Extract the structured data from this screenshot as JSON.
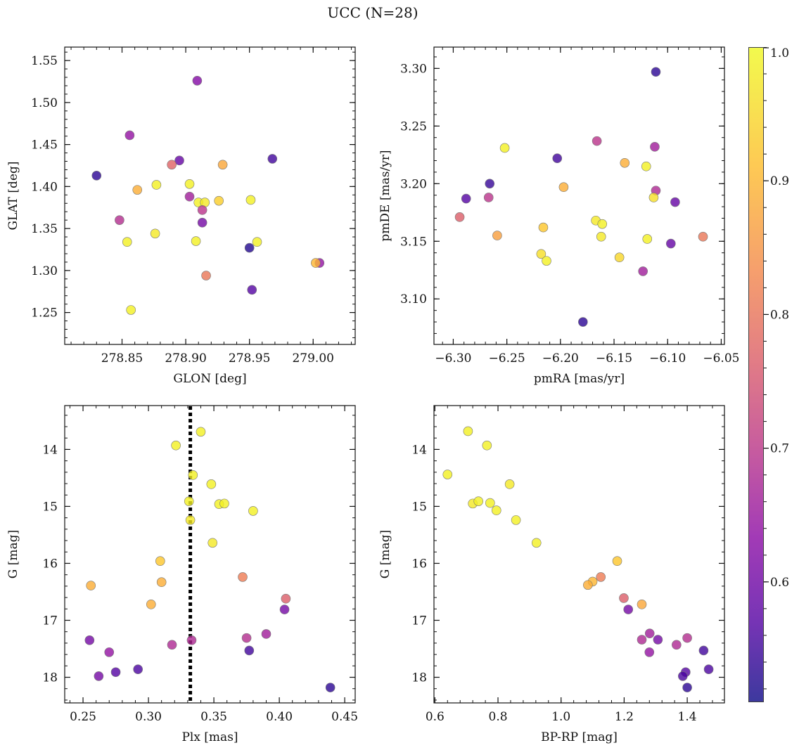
{
  "title": "UCC (N=28)",
  "colormap": "plasma",
  "colorbar": {
    "vmin": 0.51,
    "vmax": 1.0,
    "ticks": [
      0.6,
      0.7,
      0.8,
      0.9,
      1.0
    ],
    "tick_labels": [
      "0.6",
      "0.7",
      "0.8",
      "0.9",
      "1.0"
    ]
  },
  "chart_data": [
    {
      "type": "scatter",
      "title": "",
      "xlabel": "GLON [deg]",
      "ylabel": "GLAT [deg]",
      "xlim": [
        278.805,
        279.033
      ],
      "ylim": [
        1.212,
        1.566
      ],
      "y_inverted": false,
      "xticks": [
        278.85,
        278.9,
        278.95,
        279.0
      ],
      "xtick_labels": [
        "278.85",
        "278.90",
        "278.95",
        "279.00"
      ],
      "yticks": [
        1.25,
        1.3,
        1.35,
        1.4,
        1.45,
        1.5,
        1.55
      ],
      "ytick_labels": [
        "1.25",
        "1.30",
        "1.35",
        "1.40",
        "1.45",
        "1.50",
        "1.55"
      ],
      "points": [
        {
          "x": 278.83,
          "y": 1.413,
          "c": 0.54
        },
        {
          "x": 278.856,
          "y": 1.461,
          "c": 0.66
        },
        {
          "x": 278.909,
          "y": 1.526,
          "c": 0.64
        },
        {
          "x": 278.895,
          "y": 1.431,
          "c": 0.6
        },
        {
          "x": 278.889,
          "y": 1.426,
          "c": 0.8
        },
        {
          "x": 278.968,
          "y": 1.433,
          "c": 0.56
        },
        {
          "x": 278.929,
          "y": 1.426,
          "c": 0.9
        },
        {
          "x": 278.862,
          "y": 1.396,
          "c": 0.91
        },
        {
          "x": 278.877,
          "y": 1.402,
          "c": 0.99
        },
        {
          "x": 278.903,
          "y": 1.403,
          "c": 0.99
        },
        {
          "x": 278.903,
          "y": 1.388,
          "c": 0.68
        },
        {
          "x": 278.91,
          "y": 1.381,
          "c": 0.99
        },
        {
          "x": 278.915,
          "y": 1.381,
          "c": 0.98
        },
        {
          "x": 278.926,
          "y": 1.383,
          "c": 0.95
        },
        {
          "x": 278.951,
          "y": 1.384,
          "c": 0.99
        },
        {
          "x": 278.913,
          "y": 1.372,
          "c": 0.72
        },
        {
          "x": 278.913,
          "y": 1.357,
          "c": 0.62
        },
        {
          "x": 278.848,
          "y": 1.36,
          "c": 0.71
        },
        {
          "x": 278.876,
          "y": 1.344,
          "c": 0.98
        },
        {
          "x": 278.854,
          "y": 1.334,
          "c": 0.99
        },
        {
          "x": 278.908,
          "y": 1.335,
          "c": 0.99
        },
        {
          "x": 278.956,
          "y": 1.334,
          "c": 0.99
        },
        {
          "x": 278.95,
          "y": 1.327,
          "c": 0.53
        },
        {
          "x": 279.005,
          "y": 1.309,
          "c": 0.66
        },
        {
          "x": 279.002,
          "y": 1.309,
          "c": 0.92
        },
        {
          "x": 278.916,
          "y": 1.294,
          "c": 0.83
        },
        {
          "x": 278.952,
          "y": 1.277,
          "c": 0.58
        },
        {
          "x": 278.857,
          "y": 1.253,
          "c": 0.99
        }
      ]
    },
    {
      "type": "scatter",
      "title": "",
      "xlabel": "pmRA [mas/yr]",
      "ylabel": "pmDE [mas/yr]",
      "xlim": [
        -6.318,
        -6.047
      ],
      "ylim": [
        3.0605,
        3.3185
      ],
      "y_inverted": false,
      "xticks": [
        -6.3,
        -6.25,
        -6.2,
        -6.15,
        -6.1,
        -6.05
      ],
      "xtick_labels": [
        "−6.30",
        "−6.25",
        "−6.20",
        "−6.15",
        "−6.10",
        "−6.05"
      ],
      "yticks": [
        3.1,
        3.15,
        3.2,
        3.25,
        3.3
      ],
      "ytick_labels": [
        "3.10",
        "3.15",
        "3.20",
        "3.25",
        "3.30"
      ],
      "points": [
        {
          "x": -6.111,
          "y": 3.297,
          "c": 0.54
        },
        {
          "x": -6.166,
          "y": 3.237,
          "c": 0.72
        },
        {
          "x": -6.252,
          "y": 3.231,
          "c": 0.99
        },
        {
          "x": -6.112,
          "y": 3.232,
          "c": 0.68
        },
        {
          "x": -6.203,
          "y": 3.222,
          "c": 0.56
        },
        {
          "x": -6.14,
          "y": 3.218,
          "c": 0.91
        },
        {
          "x": -6.12,
          "y": 3.215,
          "c": 0.99
        },
        {
          "x": -6.266,
          "y": 3.2,
          "c": 0.55
        },
        {
          "x": -6.197,
          "y": 3.197,
          "c": 0.91
        },
        {
          "x": -6.111,
          "y": 3.194,
          "c": 0.7
        },
        {
          "x": -6.288,
          "y": 3.187,
          "c": 0.58
        },
        {
          "x": -6.267,
          "y": 3.188,
          "c": 0.72
        },
        {
          "x": -6.113,
          "y": 3.188,
          "c": 0.97
        },
        {
          "x": -6.093,
          "y": 3.184,
          "c": 0.6
        },
        {
          "x": -6.294,
          "y": 3.171,
          "c": 0.79
        },
        {
          "x": -6.167,
          "y": 3.168,
          "c": 0.98
        },
        {
          "x": -6.161,
          "y": 3.165,
          "c": 0.99
        },
        {
          "x": -6.216,
          "y": 3.162,
          "c": 0.94
        },
        {
          "x": -6.259,
          "y": 3.155,
          "c": 0.89
        },
        {
          "x": -6.162,
          "y": 3.154,
          "c": 0.98
        },
        {
          "x": -6.067,
          "y": 3.154,
          "c": 0.83
        },
        {
          "x": -6.119,
          "y": 3.152,
          "c": 0.99
        },
        {
          "x": -6.097,
          "y": 3.148,
          "c": 0.6
        },
        {
          "x": -6.218,
          "y": 3.139,
          "c": 0.97
        },
        {
          "x": -6.145,
          "y": 3.136,
          "c": 0.96
        },
        {
          "x": -6.213,
          "y": 3.133,
          "c": 0.99
        },
        {
          "x": -6.123,
          "y": 3.124,
          "c": 0.68
        },
        {
          "x": -6.179,
          "y": 3.08,
          "c": 0.54
        }
      ]
    },
    {
      "type": "scatter",
      "title": "",
      "xlabel": "Plx [mas]",
      "ylabel": "G [mag]",
      "xlim": [
        0.236,
        0.458
      ],
      "ylim": [
        13.23,
        18.45
      ],
      "y_inverted": true,
      "vline": {
        "x": 0.332,
        "style": "dotted"
      },
      "xticks": [
        0.25,
        0.3,
        0.35,
        0.4,
        0.45
      ],
      "xtick_labels": [
        "0.25",
        "0.30",
        "0.35",
        "0.40",
        "0.45"
      ],
      "yticks": [
        14,
        15,
        16,
        17,
        18
      ],
      "ytick_labels": [
        "14",
        "15",
        "16",
        "17",
        "18"
      ],
      "points": [
        {
          "x": 0.34,
          "y": 13.69,
          "c": 0.99
        },
        {
          "x": 0.321,
          "y": 13.93,
          "c": 0.99
        },
        {
          "x": 0.334,
          "y": 14.45,
          "c": 0.99
        },
        {
          "x": 0.348,
          "y": 14.61,
          "c": 0.99
        },
        {
          "x": 0.331,
          "y": 14.91,
          "c": 0.99
        },
        {
          "x": 0.354,
          "y": 14.96,
          "c": 0.99
        },
        {
          "x": 0.358,
          "y": 14.95,
          "c": 0.99
        },
        {
          "x": 0.38,
          "y": 15.08,
          "c": 0.99
        },
        {
          "x": 0.332,
          "y": 15.24,
          "c": 0.98
        },
        {
          "x": 0.349,
          "y": 15.64,
          "c": 0.98
        },
        {
          "x": 0.309,
          "y": 15.96,
          "c": 0.94
        },
        {
          "x": 0.372,
          "y": 16.24,
          "c": 0.84
        },
        {
          "x": 0.31,
          "y": 16.33,
          "c": 0.91
        },
        {
          "x": 0.256,
          "y": 16.39,
          "c": 0.91
        },
        {
          "x": 0.405,
          "y": 16.62,
          "c": 0.79
        },
        {
          "x": 0.302,
          "y": 16.72,
          "c": 0.91
        },
        {
          "x": 0.404,
          "y": 16.81,
          "c": 0.62
        },
        {
          "x": 0.39,
          "y": 17.24,
          "c": 0.68
        },
        {
          "x": 0.375,
          "y": 17.31,
          "c": 0.71
        },
        {
          "x": 0.255,
          "y": 17.35,
          "c": 0.62
        },
        {
          "x": 0.333,
          "y": 17.35,
          "c": 0.7
        },
        {
          "x": 0.318,
          "y": 17.43,
          "c": 0.7
        },
        {
          "x": 0.27,
          "y": 17.56,
          "c": 0.66
        },
        {
          "x": 0.377,
          "y": 17.53,
          "c": 0.56
        },
        {
          "x": 0.292,
          "y": 17.86,
          "c": 0.57
        },
        {
          "x": 0.275,
          "y": 17.91,
          "c": 0.58
        },
        {
          "x": 0.262,
          "y": 17.98,
          "c": 0.62
        },
        {
          "x": 0.439,
          "y": 18.18,
          "c": 0.54
        }
      ]
    },
    {
      "type": "scatter",
      "title": "",
      "xlabel": "BP-RP [mag]",
      "ylabel": "G [mag]",
      "xlim": [
        0.597,
        1.518
      ],
      "ylim": [
        13.23,
        18.45
      ],
      "y_inverted": true,
      "xticks": [
        0.6,
        0.8,
        1.0,
        1.2,
        1.4
      ],
      "xtick_labels": [
        "0.6",
        "0.8",
        "1.0",
        "1.2",
        "1.4"
      ],
      "yticks": [
        14,
        15,
        16,
        17,
        18
      ],
      "ytick_labels": [
        "14",
        "15",
        "16",
        "17",
        "18"
      ],
      "points": [
        {
          "x": 0.705,
          "y": 13.68,
          "c": 0.99
        },
        {
          "x": 0.765,
          "y": 13.93,
          "c": 0.99
        },
        {
          "x": 0.64,
          "y": 14.44,
          "c": 0.99
        },
        {
          "x": 0.837,
          "y": 14.61,
          "c": 0.98
        },
        {
          "x": 0.72,
          "y": 14.95,
          "c": 0.98
        },
        {
          "x": 0.738,
          "y": 14.91,
          "c": 0.99
        },
        {
          "x": 0.775,
          "y": 14.94,
          "c": 0.99
        },
        {
          "x": 0.795,
          "y": 15.07,
          "c": 0.99
        },
        {
          "x": 0.857,
          "y": 15.24,
          "c": 0.99
        },
        {
          "x": 0.922,
          "y": 15.64,
          "c": 0.99
        },
        {
          "x": 1.178,
          "y": 15.96,
          "c": 0.94
        },
        {
          "x": 1.126,
          "y": 16.24,
          "c": 0.84
        },
        {
          "x": 1.1,
          "y": 16.32,
          "c": 0.92
        },
        {
          "x": 1.085,
          "y": 16.38,
          "c": 0.91
        },
        {
          "x": 1.199,
          "y": 16.61,
          "c": 0.79
        },
        {
          "x": 1.256,
          "y": 16.72,
          "c": 0.9
        },
        {
          "x": 1.213,
          "y": 16.81,
          "c": 0.62
        },
        {
          "x": 1.281,
          "y": 17.23,
          "c": 0.68
        },
        {
          "x": 1.4,
          "y": 17.31,
          "c": 0.71
        },
        {
          "x": 1.307,
          "y": 17.34,
          "c": 0.62
        },
        {
          "x": 1.256,
          "y": 17.34,
          "c": 0.7
        },
        {
          "x": 1.366,
          "y": 17.43,
          "c": 0.7
        },
        {
          "x": 1.28,
          "y": 17.56,
          "c": 0.66
        },
        {
          "x": 1.452,
          "y": 17.53,
          "c": 0.56
        },
        {
          "x": 1.468,
          "y": 17.86,
          "c": 0.57
        },
        {
          "x": 1.395,
          "y": 17.91,
          "c": 0.58
        },
        {
          "x": 1.386,
          "y": 17.98,
          "c": 0.57
        },
        {
          "x": 1.4,
          "y": 18.18,
          "c": 0.54
        }
      ]
    }
  ]
}
